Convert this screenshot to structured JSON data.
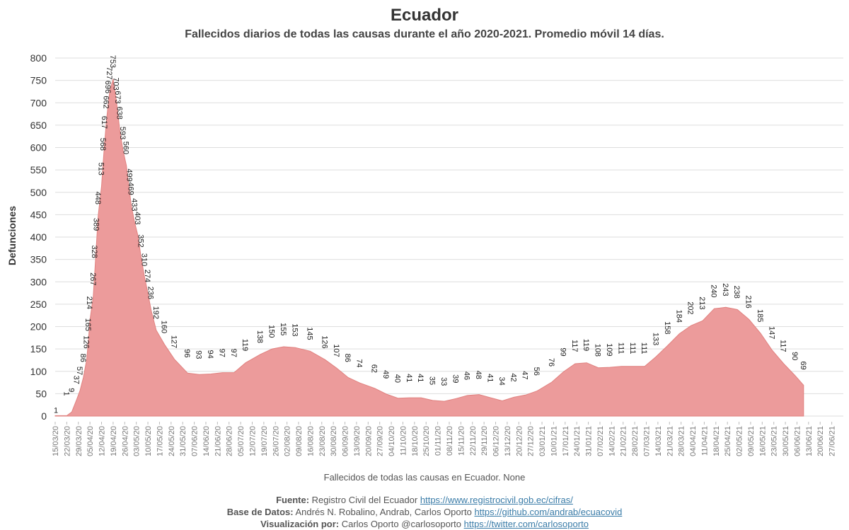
{
  "header": {
    "title": "Ecuador",
    "subtitle": "Fallecidos diarios de todas las causas durante el año 2020-2021. Promedio móvil 14 días."
  },
  "colors": {
    "area": "#ec9b9b",
    "area_edge": "#e0817f",
    "grid": "#dedede",
    "label": "#222222"
  },
  "chart_data": {
    "type": "area",
    "ylabel": "Defunciones",
    "xlabel": "Fallecidos de todas las causas en Ecuador. None",
    "ylim": [
      0,
      800
    ],
    "yticks": [
      0,
      50,
      100,
      150,
      200,
      250,
      300,
      350,
      400,
      450,
      500,
      550,
      600,
      650,
      700,
      750,
      800
    ],
    "x_range": [
      "2020-03-15",
      "2021-07-04"
    ],
    "xtick_labels": [
      "15/03/20",
      "22/03/20",
      "29/03/20",
      "05/04/20",
      "12/04/20",
      "19/04/20",
      "26/04/20",
      "03/05/20",
      "10/05/20",
      "17/05/20",
      "24/05/20",
      "31/05/20",
      "07/06/20",
      "14/06/20",
      "21/06/20",
      "28/06/20",
      "05/07/20",
      "12/07/20",
      "19/07/20",
      "26/07/20",
      "02/08/20",
      "09/08/20",
      "16/08/20",
      "23/08/20",
      "30/08/20",
      "06/09/20",
      "13/09/20",
      "20/09/20",
      "27/09/20",
      "04/10/20",
      "11/10/20",
      "18/10/20",
      "25/10/20",
      "01/11/20",
      "08/11/20",
      "15/11/20",
      "22/11/20",
      "29/11/20",
      "06/12/20",
      "13/12/20",
      "20/12/20",
      "27/12/20",
      "03/01/21",
      "10/01/21",
      "17/01/21",
      "24/01/21",
      "31/01/21",
      "07/02/21",
      "14/02/21",
      "21/02/21",
      "28/02/21",
      "07/03/21",
      "14/03/21",
      "21/03/21",
      "28/03/21",
      "04/04/21",
      "11/04/21",
      "18/04/21",
      "25/04/21",
      "02/05/21",
      "09/05/21",
      "16/05/21",
      "23/05/21",
      "30/05/21",
      "06/06/21",
      "13/06/21",
      "20/06/21",
      "27/06/21"
    ],
    "series": [
      {
        "points": [
          [
            "2020-03-15",
            1
          ],
          [
            "2020-03-22",
            1
          ],
          [
            "2020-03-25",
            9
          ],
          [
            "2020-03-28",
            37
          ],
          [
            "2020-03-30",
            57
          ],
          [
            "2020-04-01",
            86
          ],
          [
            "2020-04-03",
            126
          ],
          [
            "2020-04-04",
            165
          ],
          [
            "2020-04-05",
            214
          ],
          [
            "2020-04-07",
            267
          ],
          [
            "2020-04-08",
            328
          ],
          [
            "2020-04-09",
            389
          ],
          [
            "2020-04-10",
            448
          ],
          [
            "2020-04-12",
            513
          ],
          [
            "2020-04-13",
            568
          ],
          [
            "2020-04-14",
            617
          ],
          [
            "2020-04-15",
            662
          ],
          [
            "2020-04-16",
            696
          ],
          [
            "2020-04-17",
            727
          ],
          [
            "2020-04-19",
            753
          ],
          [
            "2020-04-21",
            703
          ],
          [
            "2020-04-22",
            673
          ],
          [
            "2020-04-23",
            638
          ],
          [
            "2020-04-25",
            593
          ],
          [
            "2020-04-27",
            560
          ],
          [
            "2020-04-29",
            499
          ],
          [
            "2020-04-30",
            469
          ],
          [
            "2020-05-02",
            433
          ],
          [
            "2020-05-04",
            403
          ],
          [
            "2020-05-06",
            352
          ],
          [
            "2020-05-08",
            310
          ],
          [
            "2020-05-10",
            274
          ],
          [
            "2020-05-12",
            236
          ],
          [
            "2020-05-15",
            192
          ],
          [
            "2020-05-20",
            160
          ],
          [
            "2020-05-26",
            127
          ],
          [
            "2020-06-03",
            96
          ],
          [
            "2020-06-10",
            93
          ],
          [
            "2020-06-17",
            94
          ],
          [
            "2020-06-24",
            97
          ],
          [
            "2020-07-01",
            97
          ],
          [
            "2020-07-08",
            119
          ],
          [
            "2020-07-17",
            138
          ],
          [
            "2020-07-24",
            150
          ],
          [
            "2020-07-31",
            155
          ],
          [
            "2020-08-07",
            153
          ],
          [
            "2020-08-16",
            145
          ],
          [
            "2020-08-25",
            126
          ],
          [
            "2020-09-01",
            107
          ],
          [
            "2020-09-08",
            86
          ],
          [
            "2020-09-15",
            74
          ],
          [
            "2020-09-24",
            62
          ],
          [
            "2020-10-01",
            49
          ],
          [
            "2020-10-08",
            40
          ],
          [
            "2020-10-15",
            41
          ],
          [
            "2020-10-22",
            41
          ],
          [
            "2020-10-29",
            35
          ],
          [
            "2020-11-05",
            33
          ],
          [
            "2020-11-12",
            39
          ],
          [
            "2020-11-19",
            46
          ],
          [
            "2020-11-26",
            48
          ],
          [
            "2020-12-03",
            41
          ],
          [
            "2020-12-10",
            34
          ],
          [
            "2020-12-17",
            42
          ],
          [
            "2020-12-24",
            47
          ],
          [
            "2020-12-31",
            56
          ],
          [
            "2021-01-09",
            76
          ],
          [
            "2021-01-16",
            99
          ],
          [
            "2021-01-23",
            117
          ],
          [
            "2021-01-30",
            119
          ],
          [
            "2021-02-06",
            108
          ],
          [
            "2021-02-13",
            109
          ],
          [
            "2021-02-20",
            111
          ],
          [
            "2021-02-27",
            111
          ],
          [
            "2021-03-06",
            111
          ],
          [
            "2021-03-13",
            133
          ],
          [
            "2021-03-20",
            158
          ],
          [
            "2021-03-27",
            184
          ],
          [
            "2021-04-03",
            202
          ],
          [
            "2021-04-10",
            213
          ],
          [
            "2021-04-17",
            240
          ],
          [
            "2021-04-24",
            243
          ],
          [
            "2021-05-01",
            238
          ],
          [
            "2021-05-08",
            216
          ],
          [
            "2021-05-15",
            185
          ],
          [
            "2021-05-22",
            147
          ],
          [
            "2021-05-29",
            117
          ],
          [
            "2021-06-05",
            90
          ],
          [
            "2021-06-10",
            69
          ]
        ]
      }
    ]
  },
  "credits": {
    "source_label": "Fuente:",
    "source_text": "Registro Civil del Ecuador",
    "source_url": "https://www.registrocivil.gob.ec/cifras/",
    "db_label": "Base de Datos:",
    "db_text": "Andrés N. Robalino, Andrab, Carlos Oporto",
    "db_url": "https://github.com/andrab/ecuacovid",
    "viz_label": "Visualización por:",
    "viz_text": "Carlos Oporto @carlosoporto",
    "viz_url": "https://twitter.com/carlosoporto"
  }
}
